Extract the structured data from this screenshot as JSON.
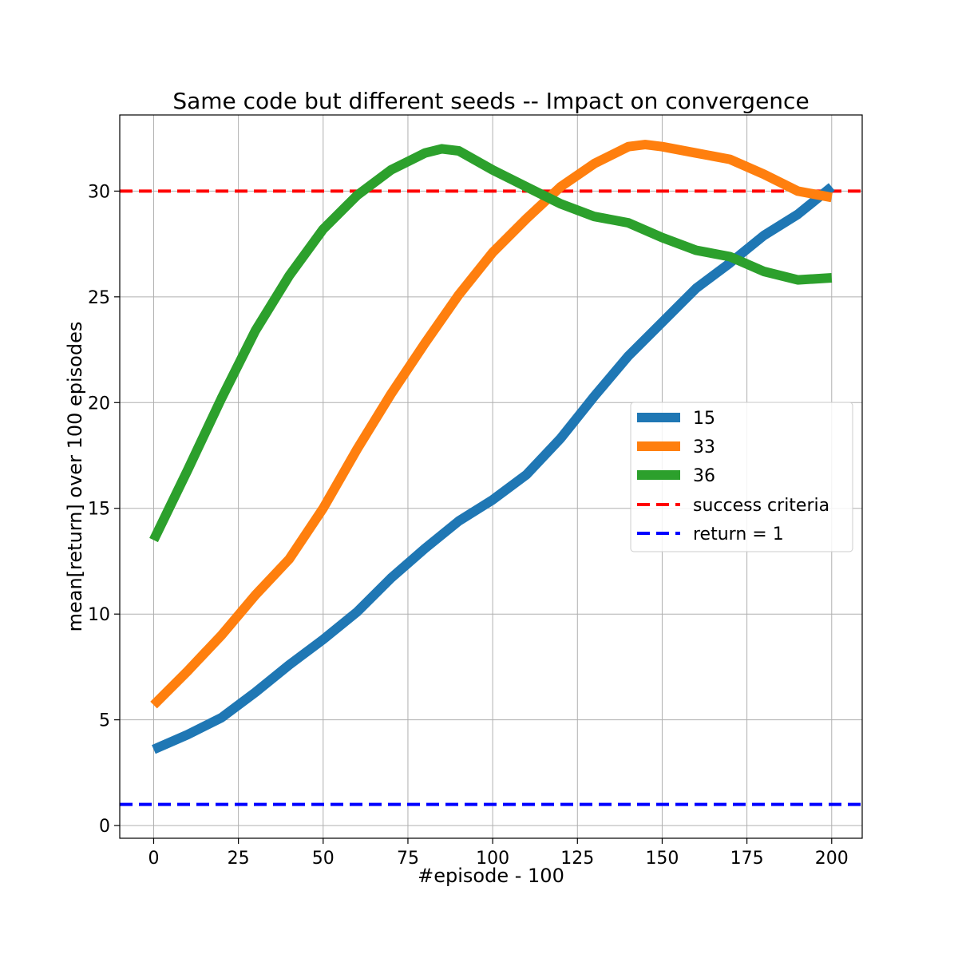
{
  "chart_data": {
    "type": "line",
    "title": "Same code but different seeds -- Impact on convergence",
    "xlabel": "#episode - 100",
    "ylabel": "mean[return] over 100 episodes",
    "xlim": [
      -10,
      209
    ],
    "ylim": [
      -0.6,
      33.6
    ],
    "xticks": [
      0,
      25,
      50,
      75,
      100,
      125,
      150,
      175,
      200
    ],
    "yticks": [
      0,
      5,
      10,
      15,
      20,
      25,
      30
    ],
    "grid": true,
    "legend_position": "center-right",
    "series": [
      {
        "name": "15",
        "color": "#1f77b4",
        "x": [
          0,
          10,
          20,
          30,
          40,
          50,
          60,
          70,
          80,
          90,
          100,
          110,
          120,
          130,
          140,
          150,
          160,
          170,
          180,
          190,
          200
        ],
        "y": [
          3.6,
          4.3,
          5.1,
          6.3,
          7.6,
          8.8,
          10.1,
          11.7,
          13.1,
          14.4,
          15.4,
          16.6,
          18.3,
          20.3,
          22.2,
          23.8,
          25.4,
          26.6,
          27.9,
          28.9,
          30.2
        ]
      },
      {
        "name": "33",
        "color": "#ff7f0e",
        "x": [
          0,
          10,
          20,
          30,
          40,
          50,
          60,
          70,
          80,
          90,
          100,
          110,
          120,
          130,
          140,
          145,
          150,
          160,
          170,
          180,
          190,
          200
        ],
        "y": [
          5.7,
          7.3,
          9.0,
          10.9,
          12.6,
          15.0,
          17.8,
          20.4,
          22.8,
          25.1,
          27.1,
          28.7,
          30.2,
          31.3,
          32.1,
          32.2,
          32.1,
          31.8,
          31.5,
          30.8,
          30.0,
          29.7
        ]
      },
      {
        "name": "36",
        "color": "#2ca02c",
        "x": [
          0,
          10,
          20,
          30,
          40,
          50,
          60,
          70,
          80,
          85,
          90,
          100,
          110,
          120,
          130,
          140,
          150,
          160,
          170,
          180,
          190,
          200
        ],
        "y": [
          13.5,
          16.8,
          20.2,
          23.4,
          26.0,
          28.2,
          29.8,
          31.0,
          31.8,
          32.0,
          31.9,
          31.0,
          30.2,
          29.4,
          28.8,
          28.5,
          27.8,
          27.2,
          26.9,
          26.2,
          25.8,
          25.9
        ]
      }
    ],
    "reference_lines": [
      {
        "name": "success criteria",
        "y": 30,
        "color": "#ff0000",
        "style": "dashed"
      },
      {
        "name": "return = 1",
        "y": 1,
        "color": "#0000ff",
        "style": "dashed"
      }
    ]
  }
}
